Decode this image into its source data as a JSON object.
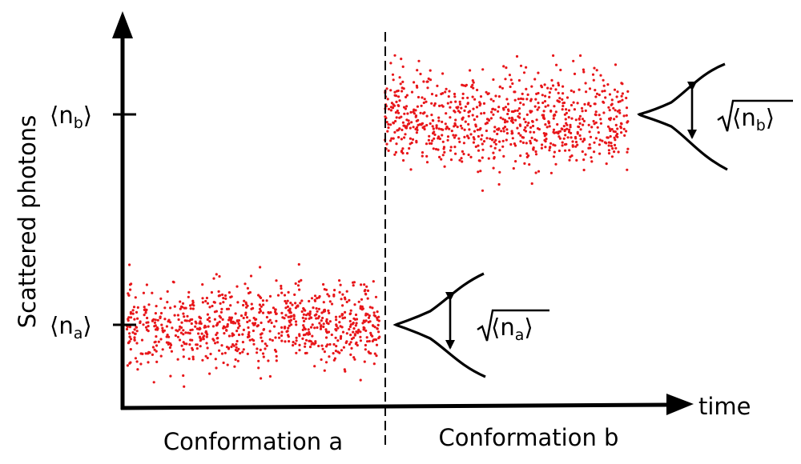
{
  "axes": {
    "y_title": "Scattered photons",
    "x_title": "time"
  },
  "levels": {
    "a": {
      "label": "⟨n",
      "subscript": "a",
      "close": "⟩"
    },
    "b": {
      "label": "⟨n",
      "subscript": "b",
      "close": "⟩"
    }
  },
  "regions": {
    "a": "Conformation a",
    "b": "Conformation b"
  },
  "noise_labels": {
    "a": {
      "text": "⟨n",
      "subscript": "a",
      "close": "⟩"
    },
    "b": {
      "text": "⟨n",
      "subscript": "b",
      "close": "⟩"
    }
  },
  "style": {
    "point_color": "#e8161a",
    "line_color": "#000000"
  },
  "chart_data": {
    "type": "scatter",
    "series": [
      {
        "name": "",
        "segment": "Conformation a",
        "level": "⟨na⟩",
        "points": 820
      },
      {
        "name": "",
        "segment": "Conformation b",
        "level": "⟨nb⟩",
        "points": 820
      }
    ],
    "distributions": [
      {
        "level": "⟨na⟩",
        "width_label": "√⟨na⟩"
      },
      {
        "level": "⟨nb⟩",
        "width_label": "√⟨nb⟩"
      }
    ]
  }
}
